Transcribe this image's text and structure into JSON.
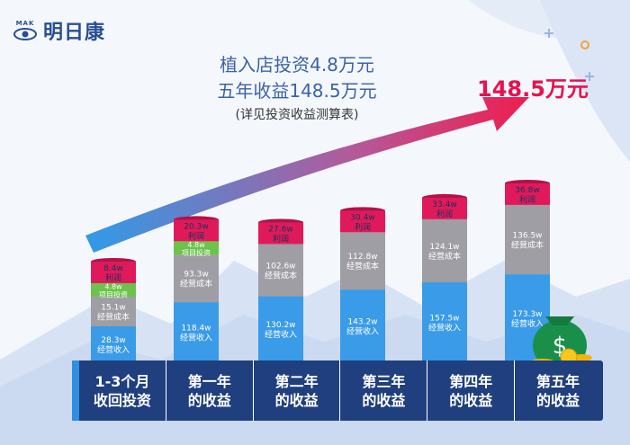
{
  "brand": {
    "mark_text": "MAK",
    "name": "明日康"
  },
  "headline": {
    "line1": "植入店投资4.8万元",
    "line2": "五年收益148.5万元",
    "line3": "(详见投资收益测算表)"
  },
  "total_label": "148.5万元",
  "colors": {
    "revenue": "#3a9be8",
    "cost": "#9e9ea4",
    "project": "#6cc24a",
    "profit": "#e01a5a",
    "footer": "#1f3f7e",
    "arrow": "#e8114f"
  },
  "chart_data": {
    "type": "bar",
    "stacked": true,
    "categories": [
      "1-3个月\n收回投资",
      "第一年\n的收益",
      "第二年\n的收益",
      "第三年\n的收益",
      "第四年\n的收益",
      "第五年\n的收益"
    ],
    "series": [
      {
        "name": "经营收入",
        "values": [
          28.3,
          118.4,
          130.2,
          143.2,
          157.5,
          173.3
        ],
        "labels": [
          "28.3w",
          "118.4w",
          "130.2w",
          "143.2w",
          "157.5w",
          "173.3w"
        ]
      },
      {
        "name": "经营成本",
        "values": [
          15.1,
          93.3,
          102.6,
          112.8,
          124.1,
          136.5
        ],
        "labels": [
          "15.1w",
          "93.3w",
          "102.6w",
          "112.8w",
          "124.1w",
          "136.5w"
        ]
      },
      {
        "name": "项目投资",
        "values": [
          4.8,
          4.8,
          null,
          null,
          null,
          null
        ],
        "labels": [
          "4.8w",
          "4.8w",
          "",
          "",
          "",
          ""
        ]
      },
      {
        "name": "利润",
        "values": [
          8.4,
          20.3,
          27.6,
          30.4,
          33.4,
          36.8
        ],
        "labels": [
          "8.4w",
          "20.3w",
          "27.6w",
          "30.4w",
          "33.4w",
          "36.8w"
        ]
      }
    ]
  }
}
